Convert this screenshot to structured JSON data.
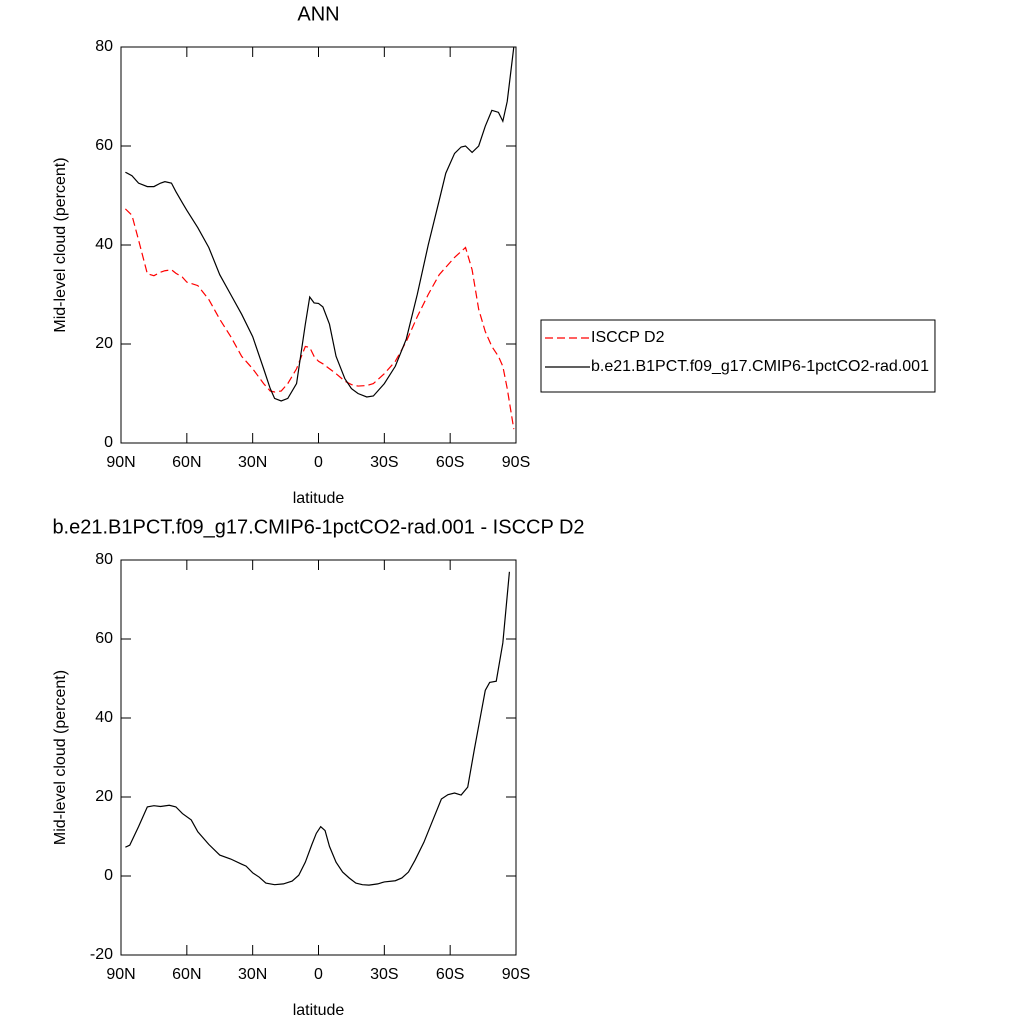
{
  "chart_data": [
    {
      "type": "line",
      "title": "ANN",
      "xlabel": "latitude",
      "ylabel": "Mid-level cloud (percent)",
      "xlim": [
        90,
        -90
      ],
      "xticks": [
        {
          "value": 90,
          "label": "90N"
        },
        {
          "value": 60,
          "label": "60N"
        },
        {
          "value": 30,
          "label": "30N"
        },
        0,
        {
          "value": -30,
          "label": "30S"
        },
        {
          "value": -60,
          "label": "60S"
        },
        {
          "value": -90,
          "label": "90S"
        }
      ],
      "ylim": [
        0,
        80
      ],
      "yticks": [
        0,
        20,
        40,
        60,
        80
      ],
      "legend": "right",
      "x": [
        88,
        85,
        82,
        78,
        75,
        72,
        70,
        67,
        65,
        62,
        60,
        55,
        50,
        45,
        40,
        35,
        30,
        25,
        22,
        20,
        17,
        14,
        10,
        6,
        4,
        2,
        0,
        -2,
        -5,
        -8,
        -12,
        -15,
        -18,
        -22,
        -25,
        -30,
        -35,
        -40,
        -45,
        -50,
        -55,
        -58,
        -62,
        -65,
        -67,
        -70,
        -73,
        -76,
        -79,
        -82,
        -84,
        -86,
        -89
      ],
      "series": [
        {
          "name": "ISCCP D2",
          "color": "#ff0000",
          "linestyle": "dashed",
          "values": [
            47.3,
            46,
            41,
            34.2,
            33.8,
            34.5,
            34.8,
            35,
            34.3,
            33.5,
            32.5,
            31.8,
            29,
            25,
            21.5,
            17.5,
            15,
            12,
            10.5,
            10.3,
            10.5,
            12,
            15,
            19.5,
            19.3,
            17.5,
            16.5,
            16,
            15,
            14,
            12.5,
            11.8,
            11.5,
            11.6,
            12,
            14,
            16.5,
            20.5,
            25.5,
            30,
            34,
            35.5,
            37.5,
            38.7,
            39.5,
            35,
            27,
            22.5,
            19.5,
            17.5,
            15.5,
            11,
            2.8
          ]
        },
        {
          "name": "b.e21.B1PCT.f09_g17.CMIP6-1pctCO2-rad.001",
          "color": "#000000",
          "linestyle": "solid",
          "values": [
            54.7,
            54,
            52.5,
            51.8,
            51.8,
            52.5,
            52.8,
            52.5,
            50.8,
            48.5,
            47,
            43.5,
            39.5,
            34,
            30,
            26,
            21.5,
            15,
            11,
            9,
            8.5,
            9,
            12,
            24,
            29.5,
            28.3,
            28.2,
            27.5,
            24,
            17.5,
            13,
            11,
            10,
            9.3,
            9.5,
            12,
            15.5,
            21,
            30,
            40,
            49,
            54.5,
            58.5,
            59.8,
            60,
            58.7,
            60,
            64,
            67.2,
            66.8,
            65,
            69,
            80
          ]
        }
      ]
    },
    {
      "type": "line",
      "title": "b.e21.B1PCT.f09_g17.CMIP6-1pctCO2-rad.001 - ISCCP D2",
      "xlabel": "latitude",
      "ylabel": "Mid-level cloud (percent)",
      "xlim": [
        90,
        -90
      ],
      "xticks": [
        {
          "value": 90,
          "label": "90N"
        },
        {
          "value": 60,
          "label": "60N"
        },
        {
          "value": 30,
          "label": "30N"
        },
        0,
        {
          "value": -30,
          "label": "30S"
        },
        {
          "value": -60,
          "label": "60S"
        },
        {
          "value": -90,
          "label": "90S"
        }
      ],
      "ylim": [
        -20,
        80
      ],
      "yticks": [
        -20,
        0,
        20,
        40,
        60,
        80
      ],
      "color": "#000000",
      "x": [
        88,
        86,
        82,
        78,
        75,
        72,
        68,
        65,
        62,
        58,
        55,
        50,
        45,
        40,
        35,
        33,
        30,
        27,
        24,
        20,
        16,
        12,
        9,
        6,
        3,
        1,
        -1,
        -3,
        -5,
        -8,
        -11,
        -14,
        -17,
        -20,
        -23,
        -27,
        -30,
        -35,
        -38,
        -41,
        -44,
        -48,
        -52,
        -56,
        -59,
        -62,
        -65,
        -68,
        -71,
        -74,
        -76,
        -78,
        -81,
        -84,
        -87
      ],
      "values": [
        7.3,
        7.8,
        12.5,
        17.5,
        17.8,
        17.6,
        17.9,
        17.5,
        15.8,
        14.2,
        11.2,
        8,
        5.3,
        4.3,
        3,
        2.5,
        0.8,
        -0.3,
        -1.8,
        -2.2,
        -2,
        -1.3,
        0.2,
        3.5,
        8,
        10.8,
        12.5,
        11.5,
        7.5,
        3.5,
        1,
        -0.5,
        -1.8,
        -2.2,
        -2.3,
        -2,
        -1.5,
        -1.2,
        -0.5,
        1,
        4,
        8.5,
        14,
        19.5,
        20.6,
        21,
        20.5,
        22.5,
        32,
        41,
        47,
        49,
        49.3,
        59,
        77
      ]
    }
  ]
}
